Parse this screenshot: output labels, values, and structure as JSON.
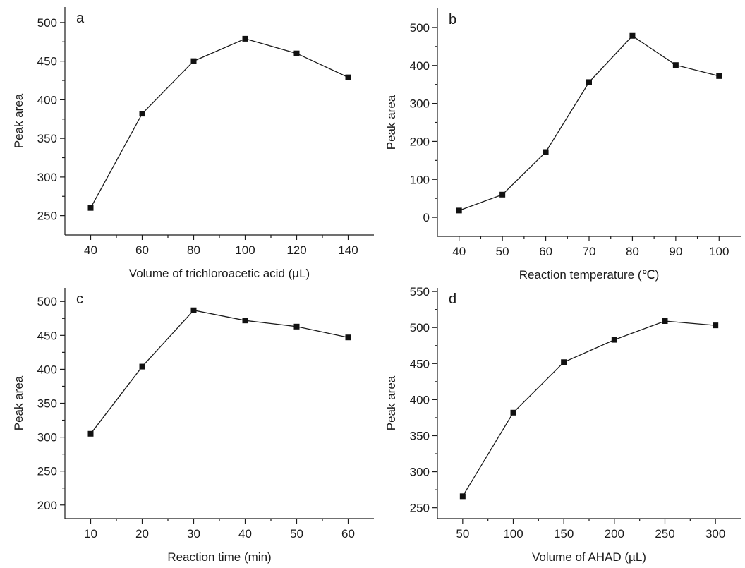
{
  "chart_data": [
    {
      "panel_label": "a",
      "type": "line",
      "xlabel": "Volume of trichloroacetic acid (µL)",
      "ylabel": "Peak area",
      "x": [
        40,
        60,
        80,
        100,
        120,
        140
      ],
      "values": [
        260,
        382,
        450,
        479,
        460,
        429
      ],
      "xlim": [
        30,
        150
      ],
      "ylim": [
        225,
        520
      ],
      "xticks": [
        40,
        60,
        80,
        100,
        120,
        140
      ],
      "yticks": [
        250,
        300,
        350,
        400,
        450,
        500
      ],
      "grid": false,
      "marker": "square"
    },
    {
      "panel_label": "b",
      "type": "line",
      "xlabel": "Reaction temperature (℃)",
      "ylabel": "Peak area",
      "x": [
        40,
        50,
        60,
        70,
        80,
        90,
        100
      ],
      "values": [
        18,
        60,
        172,
        356,
        478,
        401,
        372
      ],
      "xlim": [
        35,
        105
      ],
      "ylim": [
        -50,
        550
      ],
      "xticks": [
        40,
        50,
        60,
        70,
        80,
        90,
        100
      ],
      "yticks": [
        0,
        100,
        200,
        300,
        400,
        500
      ],
      "grid": false,
      "marker": "square"
    },
    {
      "panel_label": "c",
      "type": "line",
      "xlabel": "Reaction time (min)",
      "ylabel": "Peak area",
      "x": [
        10,
        20,
        30,
        40,
        50,
        60
      ],
      "values": [
        305,
        404,
        487,
        472,
        463,
        447
      ],
      "xlim": [
        5,
        65
      ],
      "ylim": [
        180,
        520
      ],
      "xticks": [
        10,
        20,
        30,
        40,
        50,
        60
      ],
      "yticks": [
        200,
        250,
        300,
        350,
        400,
        450,
        500
      ],
      "grid": false,
      "marker": "square"
    },
    {
      "panel_label": "d",
      "type": "line",
      "xlabel": "Volume of AHAD (µL)",
      "ylabel": "Peak area",
      "x": [
        50,
        100,
        150,
        200,
        250,
        300
      ],
      "values": [
        266,
        382,
        452,
        483,
        509,
        503
      ],
      "xlim": [
        25,
        325
      ],
      "ylim": [
        235,
        555
      ],
      "xticks": [
        50,
        100,
        150,
        200,
        250,
        300
      ],
      "yticks": [
        250,
        300,
        350,
        400,
        450,
        500,
        550
      ],
      "grid": false,
      "marker": "square"
    }
  ]
}
